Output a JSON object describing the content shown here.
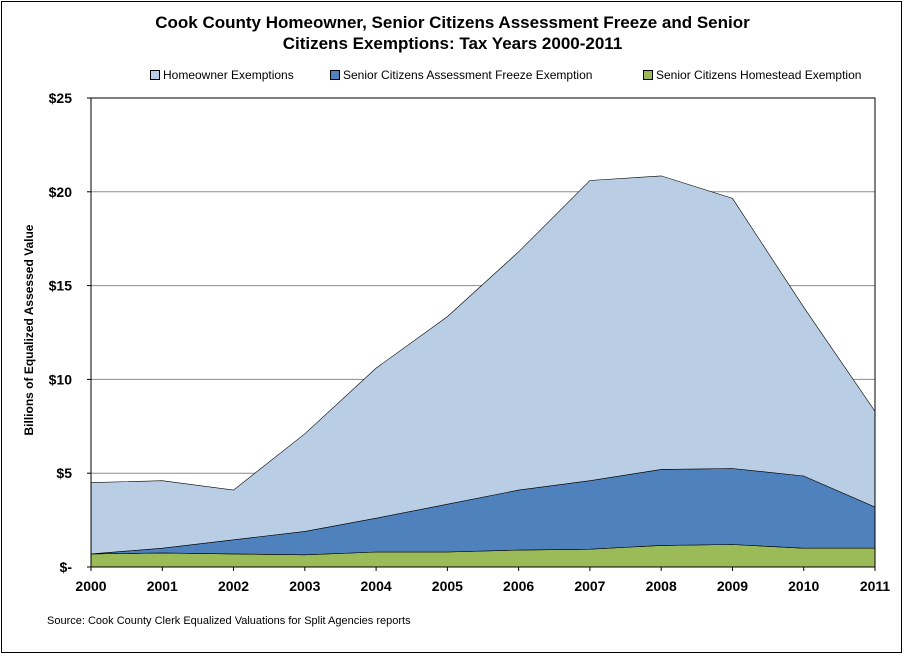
{
  "chart_data": {
    "type": "area",
    "stacked": true,
    "title_lines": [
      "Cook County Homeowner, Senior Citizens Assessment Freeze and Senior",
      "Citizens Exemptions: Tax Years 2000-2011"
    ],
    "ylabel": "Billions of Equalized Assessed Value",
    "xlabel": "",
    "x": [
      "2000",
      "2001",
      "2002",
      "2003",
      "2004",
      "2005",
      "2006",
      "2007",
      "2008",
      "2009",
      "2010",
      "2011"
    ],
    "ylim": [
      0,
      25
    ],
    "yticks": [
      {
        "value": 0,
        "label": "$-"
      },
      {
        "value": 5,
        "label": "$5"
      },
      {
        "value": 10,
        "label": "$10"
      },
      {
        "value": 15,
        "label": "$15"
      },
      {
        "value": 20,
        "label": "$20"
      },
      {
        "value": 25,
        "label": "$25"
      }
    ],
    "grid": true,
    "legend_position": "top",
    "series": [
      {
        "name": "Senior Citizens Homestead Exemption",
        "color": "#9bbb59",
        "values": [
          0.7,
          0.75,
          0.7,
          0.65,
          0.8,
          0.8,
          0.9,
          0.95,
          1.15,
          1.2,
          1.0,
          1.0
        ]
      },
      {
        "name": "Senior Citizens Assessment Freeze Exemption",
        "color": "#4f81bd",
        "values": [
          0.0,
          0.25,
          0.75,
          1.25,
          1.8,
          2.55,
          3.2,
          3.65,
          4.05,
          4.05,
          3.85,
          2.2
        ]
      },
      {
        "name": "Homeowner Exemptions",
        "color": "#b9cde5",
        "values": [
          3.8,
          3.6,
          2.65,
          5.2,
          8.0,
          10.0,
          12.7,
          16.0,
          15.65,
          14.4,
          9.0,
          5.1
        ]
      }
    ],
    "legend_order": [
      "Homeowner Exemptions",
      "Senior Citizens Assessment Freeze Exemption",
      "Senior Citizens Homestead Exemption"
    ]
  },
  "source": "Source: Cook County Clerk Equalized Valuations for Split Agencies reports"
}
